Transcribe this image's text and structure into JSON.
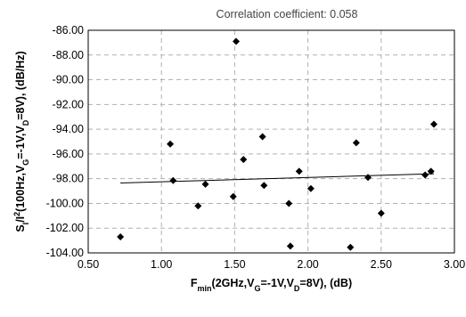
{
  "chart_data": {
    "type": "scatter",
    "annotation": "Correlation coefficient: 0.058",
    "xlabel": {
      "parts": [
        {
          "text": "F",
          "sub": false
        },
        {
          "text": "min",
          "sub": true
        },
        {
          "text": "(2GHz,V",
          "sub": false
        },
        {
          "text": "G",
          "sub": true
        },
        {
          "text": "=-1V,V",
          "sub": false
        },
        {
          "text": "D",
          "sub": true
        },
        {
          "text": "=8V), (dB)",
          "sub": false
        }
      ]
    },
    "ylabel": {
      "parts": [
        {
          "text": "S",
          "style": "normal"
        },
        {
          "text": "I",
          "style": "sub"
        },
        {
          "text": "/I",
          "style": "normal"
        },
        {
          "text": "2",
          "style": "sup"
        },
        {
          "text": "(100Hz,V",
          "style": "normal"
        },
        {
          "text": "G",
          "style": "sub"
        },
        {
          "text": "=-1V,V",
          "style": "normal"
        },
        {
          "text": "D",
          "style": "sub"
        },
        {
          "text": "=8V), (dB/Hz)",
          "style": "normal"
        }
      ]
    },
    "xlim": [
      0.5,
      3.0
    ],
    "ylim": [
      -104.0,
      -86.0
    ],
    "xticks": [
      "0.50",
      "1.00",
      "1.50",
      "2.00",
      "2.50",
      "3.00"
    ],
    "yticks": [
      "-86.00",
      "-88.00",
      "-90.00",
      "-92.00",
      "-94.00",
      "-96.00",
      "-98.00",
      "-100.00",
      "-102.00",
      "-104.00"
    ],
    "grid": true,
    "marker": "diamond",
    "colors": {
      "marker": "#000000",
      "grid": "#b0b0b0",
      "trendline": "#000000"
    },
    "points": [
      {
        "x": 0.72,
        "y": -102.7
      },
      {
        "x": 1.06,
        "y": -95.2
      },
      {
        "x": 1.08,
        "y": -98.15
      },
      {
        "x": 1.25,
        "y": -100.2
      },
      {
        "x": 1.3,
        "y": -98.45
      },
      {
        "x": 1.49,
        "y": -99.45
      },
      {
        "x": 1.51,
        "y": -86.9
      },
      {
        "x": 1.56,
        "y": -96.45
      },
      {
        "x": 1.69,
        "y": -94.6
      },
      {
        "x": 1.7,
        "y": -98.55
      },
      {
        "x": 1.87,
        "y": -100.0
      },
      {
        "x": 1.88,
        "y": -103.45
      },
      {
        "x": 1.94,
        "y": -97.4
      },
      {
        "x": 2.02,
        "y": -98.8
      },
      {
        "x": 2.29,
        "y": -103.55
      },
      {
        "x": 2.33,
        "y": -95.1
      },
      {
        "x": 2.41,
        "y": -97.9
      },
      {
        "x": 2.5,
        "y": -100.8
      },
      {
        "x": 2.8,
        "y": -97.7
      },
      {
        "x": 2.84,
        "y": -97.4
      },
      {
        "x": 2.86,
        "y": -93.6
      }
    ],
    "trendline": {
      "x": [
        0.72,
        2.86
      ],
      "y": [
        -98.35,
        -97.6
      ]
    }
  }
}
